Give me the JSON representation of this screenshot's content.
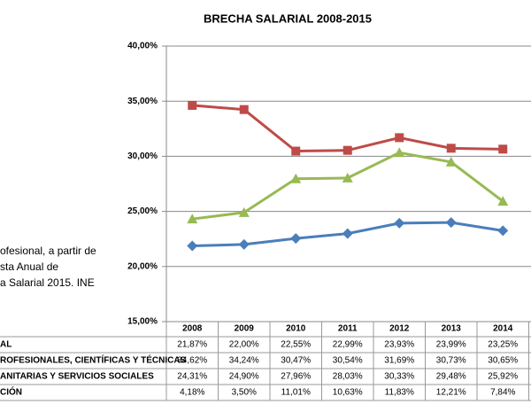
{
  "chart_data": {
    "type": "line",
    "title": "BRECHA SALARIAL 2008-2015",
    "categories": [
      "2008",
      "2009",
      "2010",
      "2011",
      "2012",
      "2013",
      "2014"
    ],
    "series": [
      {
        "name": "AL",
        "color": "#4a7ebb",
        "marker": "diamond",
        "values": [
          21.87,
          22.0,
          22.55,
          22.99,
          23.93,
          23.99,
          23.25
        ],
        "value_labels": [
          "21,87%",
          "22,00%",
          "22,55%",
          "22,99%",
          "23,93%",
          "23,99%",
          "23,25%"
        ]
      },
      {
        "name": "ROFESIONALES, CIENTÍFICAS Y TÉCNICAS",
        "color": "#be4b48",
        "marker": "square",
        "values": [
          34.62,
          34.24,
          30.47,
          30.54,
          31.69,
          30.73,
          30.65
        ],
        "value_labels": [
          "34,62%",
          "34,24%",
          "30,47%",
          "30,54%",
          "31,69%",
          "30,73%",
          "30,65%"
        ]
      },
      {
        "name": "ANITARIAS Y SERVICIOS SOCIALES",
        "color": "#98b954",
        "marker": "triangle",
        "values": [
          24.31,
          24.9,
          27.96,
          28.03,
          30.33,
          29.48,
          25.92
        ],
        "value_labels": [
          "24,31%",
          "24,90%",
          "27,96%",
          "28,03%",
          "30,33%",
          "29,48%",
          "25,92%"
        ]
      }
    ],
    "table_extra_row": {
      "name": "CIÓN",
      "cells": [
        "4,18%",
        "3,50%",
        "11,01%",
        "10,63%",
        "11,83%",
        "12,21%",
        "7,84%"
      ]
    },
    "ylim": [
      15,
      40
    ],
    "yticks": [
      {
        "value": 15,
        "label": "15,00%"
      },
      {
        "value": 20,
        "label": "20,00%"
      },
      {
        "value": 25,
        "label": "25,00%"
      },
      {
        "value": 30,
        "label": "30,00%"
      },
      {
        "value": 35,
        "label": "35,00%"
      },
      {
        "value": 40,
        "label": "40,00%"
      }
    ],
    "grid": true,
    "note": [
      "ofesional, a partir de",
      "sta Anual de",
      "a Salarial 2015. INE"
    ]
  }
}
